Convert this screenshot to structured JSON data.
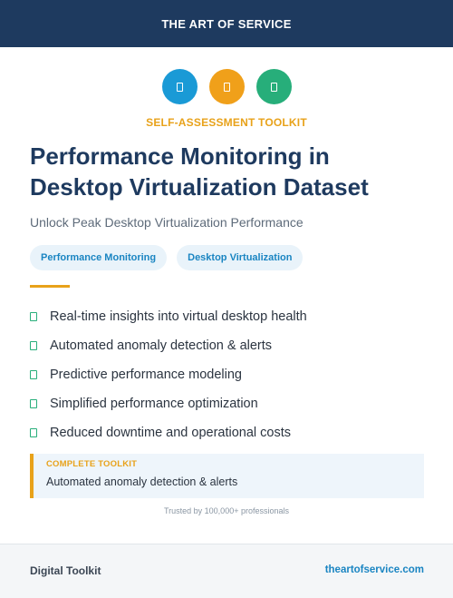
{
  "header": {
    "title": "THE ART OF SERVICE",
    "background": "#1e3a5f"
  },
  "icons": [
    {
      "name": "blue-icon",
      "color": "#1a9ad6"
    },
    {
      "name": "orange-icon",
      "color": "#f0a01a"
    },
    {
      "name": "green-icon",
      "color": "#27ae7a"
    }
  ],
  "kicker": "SELF-ASSESSMENT TOOLKIT",
  "title": "Performance Monitoring in Desktop Virtualization Dataset",
  "subtitle": "Unlock Peak Desktop Virtualization Performance",
  "tags": [
    "Performance Monitoring",
    "Desktop Virtualization"
  ],
  "features": [
    "Real-time insights into virtual desktop health",
    "Automated anomaly detection & alerts",
    "Predictive performance modeling",
    "Simplified performance optimization",
    "Reduced downtime and operational costs"
  ],
  "callout": {
    "label": "COMPLETE TOOLKIT",
    "text": "Automated anomaly detection & alerts"
  },
  "trust": "Trusted by 100,000+ professionals",
  "footer": {
    "left": "Digital Toolkit",
    "right": "theartofservice.com"
  },
  "colors": {
    "accent": "#e8a21a",
    "link": "#1a85c2",
    "check": "#27ae7a"
  }
}
